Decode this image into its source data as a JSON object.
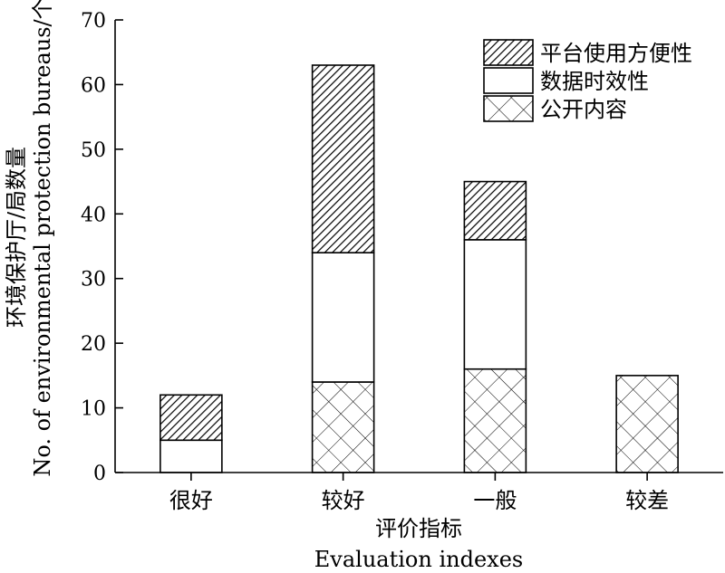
{
  "chart_data": {
    "type": "bar",
    "stacked": true,
    "categories": [
      "很好",
      "较好",
      "一般",
      "较差"
    ],
    "series": [
      {
        "name": "公开内容",
        "values": [
          0,
          14,
          16,
          15
        ],
        "pattern": "crosshatch"
      },
      {
        "name": "数据时效性",
        "values": [
          5,
          20,
          20,
          0
        ],
        "pattern": "none"
      },
      {
        "name": "平台使用方便性",
        "values": [
          7,
          29,
          9,
          0
        ],
        "pattern": "diagonal"
      }
    ],
    "legend_order": [
      "平台使用方便性",
      "数据时效性",
      "公开内容"
    ],
    "legend_position": "top-right",
    "xlabel_cn": "评价指标",
    "xlabel_en": "Evaluation indexes",
    "ylabel_cn": "环境保护厅/局数量",
    "ylabel_en": "No. of environmental protection bureaus/个",
    "ylim": [
      0,
      70
    ],
    "yticks": [
      0,
      10,
      20,
      30,
      40,
      50,
      60,
      70
    ],
    "grid": false,
    "colors": {
      "stroke": "#000000",
      "fill": "#ffffff"
    }
  }
}
